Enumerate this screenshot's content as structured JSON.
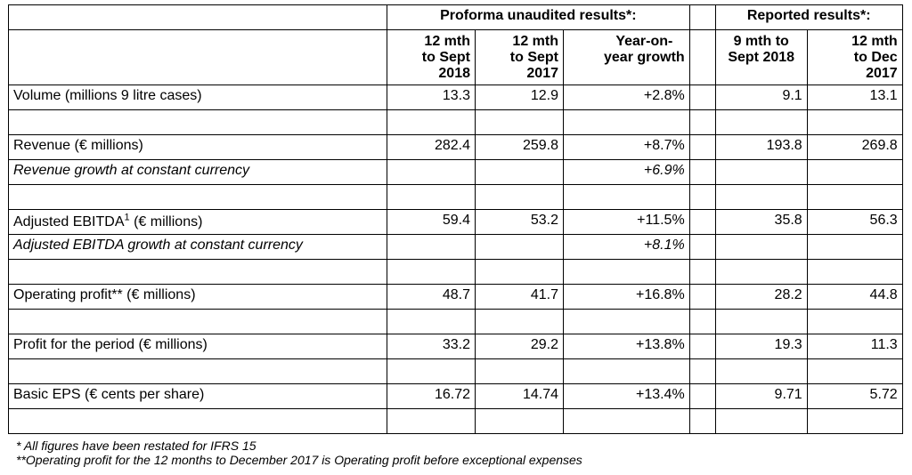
{
  "header": {
    "proforma_title": "Proforma unaudited results*:",
    "reported_title": "Reported results*:",
    "columns": [
      [
        "12 mth",
        "to Sept",
        "2018"
      ],
      [
        "12 mth",
        "to Sept",
        "2017"
      ],
      [
        "Year-on-",
        "year growth"
      ],
      [
        "9 mth to",
        "Sept 2018"
      ],
      [
        "12 mth",
        "to Dec",
        "2017"
      ]
    ]
  },
  "rows": {
    "volume": {
      "label": "Volume (millions 9 litre cases)",
      "v": [
        "13.3",
        "12.9",
        "+2.8%",
        "9.1",
        "13.1"
      ]
    },
    "revenue": {
      "label": "Revenue (€ millions)",
      "v": [
        "282.4",
        "259.8",
        "+8.7%",
        "193.8",
        "269.8"
      ]
    },
    "revenue_cc": {
      "label": "Revenue growth at constant currency",
      "growth": "+6.9%"
    },
    "ebitda": {
      "label_pre": "Adjusted EBITDA",
      "sup": "1",
      "label_post": " (€ millions)",
      "v": [
        "59.4",
        "53.2",
        "+11.5%",
        "35.8",
        "56.3"
      ]
    },
    "ebitda_cc": {
      "label": "Adjusted EBITDA growth at constant currency",
      "growth": "+8.1%"
    },
    "op_profit": {
      "label": "Operating profit** (€ millions)",
      "v": [
        "48.7",
        "41.7",
        "+16.8%",
        "28.2",
        "44.8"
      ]
    },
    "profit": {
      "label": "Profit for the period (€ millions)",
      "v": [
        "33.2",
        "29.2",
        "+13.8%",
        "19.3",
        "11.3"
      ]
    },
    "eps": {
      "label": "Basic EPS (€ cents per share)",
      "v": [
        "16.72",
        "14.74",
        "+13.4%",
        "9.71",
        "5.72"
      ]
    }
  },
  "footnotes": [
    "* All figures have been restated for IFRS 15",
    "**Operating profit for the 12 months to December 2017 is Operating profit before exceptional expenses"
  ]
}
